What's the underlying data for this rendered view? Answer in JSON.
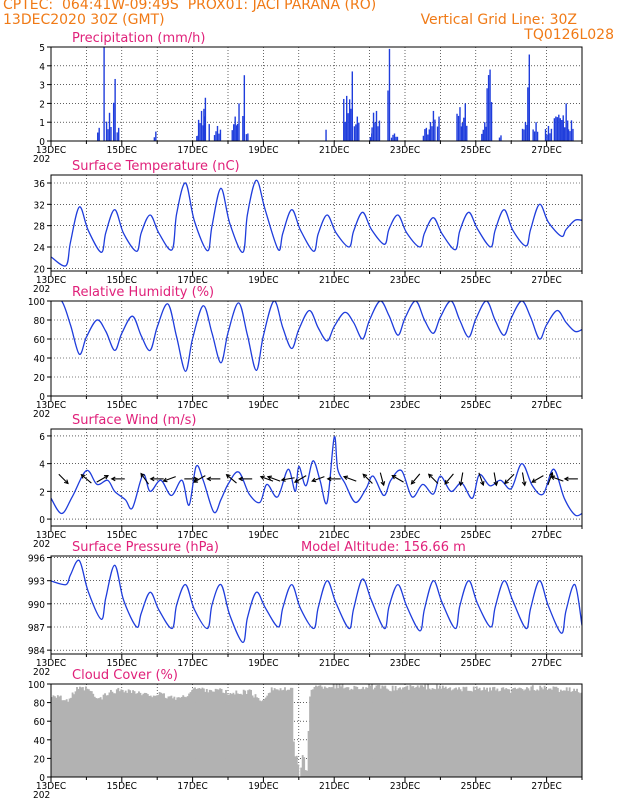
{
  "header": {
    "line1_left": "CPTEC:  064:41W-09:49S  PROX01: JACI PARANA (RO)",
    "line2_left": "13DEC2020 30Z (GMT)",
    "line2_right": "Vertical Grid Line: 30Z",
    "line3_right": "TQ0126L028"
  },
  "colors": {
    "header": "#f07a16",
    "panel_title": "#e0217a",
    "series": "#1f3ddc",
    "cloud": "#b2b2b2"
  },
  "x_axis": {
    "labels": [
      "13DEC",
      "15DEC",
      "17DEC",
      "19DEC",
      "21DEC",
      "23DEC",
      "25DEC",
      "27DEC"
    ],
    "label_days": [
      0,
      2,
      4,
      6,
      8,
      10,
      12,
      14
    ],
    "underlabel": "202",
    "range_days": [
      0,
      15
    ]
  },
  "chart_data": [
    {
      "type": "bar",
      "title": "Precipitation (mm/h)",
      "ylim": [
        0,
        5
      ],
      "yticks": [
        "0",
        "1",
        "2",
        "3",
        "4",
        "5"
      ],
      "grid": true,
      "events": [
        [
          1.3,
          1.4,
          0.7
        ],
        [
          1.48,
          1.52,
          5
        ],
        [
          1.55,
          1.72,
          1.5
        ],
        [
          1.75,
          1.82,
          3.3
        ],
        [
          1.85,
          1.95,
          0.7
        ],
        [
          2.9,
          3.0,
          0.5
        ],
        [
          4.1,
          4.2,
          0.3
        ],
        [
          4.15,
          4.35,
          1.6
        ],
        [
          4.3,
          4.4,
          2.3
        ],
        [
          4.45,
          4.5,
          0.9
        ],
        [
          4.6,
          4.8,
          0.8
        ],
        [
          5.1,
          5.25,
          1.3
        ],
        [
          5.25,
          5.35,
          2.0
        ],
        [
          5.4,
          5.5,
          3.5
        ],
        [
          5.5,
          5.6,
          0.4
        ],
        [
          7.75,
          7.8,
          0.6
        ],
        [
          8.25,
          8.45,
          2.4
        ],
        [
          8.45,
          8.55,
          3.7
        ],
        [
          8.55,
          8.7,
          1.3
        ],
        [
          9.0,
          9.1,
          0.4
        ],
        [
          9.05,
          9.3,
          1.6
        ],
        [
          9.5,
          9.6,
          4.9
        ],
        [
          9.6,
          9.8,
          0.4
        ],
        [
          10.5,
          10.7,
          0.7
        ],
        [
          10.7,
          10.85,
          1.6
        ],
        [
          10.9,
          11.0,
          1.3
        ],
        [
          11.45,
          11.6,
          1.8
        ],
        [
          11.6,
          11.75,
          2.0
        ],
        [
          12.15,
          12.3,
          1.0
        ],
        [
          12.3,
          12.45,
          3.8
        ],
        [
          12.65,
          12.75,
          0.3
        ],
        [
          13.3,
          13.45,
          1.0
        ],
        [
          13.45,
          13.55,
          4.6
        ],
        [
          13.6,
          13.75,
          1.0
        ],
        [
          13.95,
          14.15,
          0.8
        ],
        [
          14.2,
          14.5,
          1.4
        ],
        [
          14.45,
          14.6,
          2.0
        ],
        [
          14.6,
          14.75,
          1.1
        ]
      ]
    },
    {
      "type": "line",
      "title": "Surface Temperature (nC)",
      "ylim": [
        19.5,
        37.5
      ],
      "yticks": [
        20,
        24,
        28,
        32,
        36
      ],
      "grid": true,
      "daily_min": [
        20.5,
        23.0,
        23.2,
        23.5,
        23.3,
        23.0,
        23.5,
        23.2,
        24.0,
        24.5,
        24.0,
        23.5,
        24.0,
        24.2,
        26.0,
        26.5
      ],
      "daily_max": [
        31.5,
        31.0,
        30.0,
        36.0,
        35.0,
        36.5,
        31.0,
        30.0,
        30.5,
        30.0,
        29.5,
        30.5,
        31.0,
        32.0,
        29.0
      ],
      "end_value": 29.0
    },
    {
      "type": "line",
      "title": "Relative Humidity (%)",
      "ylim": [
        0,
        100
      ],
      "yticks": [
        0,
        20,
        40,
        60,
        80,
        100
      ],
      "grid": true,
      "daily_max": [
        100,
        80,
        84,
        97,
        95,
        98,
        100,
        90,
        88,
        100,
        100,
        100,
        100,
        100,
        90,
        72
      ],
      "daily_min": [
        44,
        48,
        48,
        26,
        35,
        27,
        50,
        58,
        60,
        64,
        66,
        62,
        64,
        60,
        68
      ]
    },
    {
      "type": "line",
      "title": "Surface Wind (m/s)",
      "ylim": [
        -0.5,
        6.5
      ],
      "yticks": [
        0,
        2,
        4,
        6
      ],
      "grid": true,
      "x": [
        0,
        0.3,
        0.6,
        1.0,
        1.3,
        1.6,
        1.8,
        2.1,
        2.3,
        2.6,
        2.8,
        3.1,
        3.4,
        3.7,
        3.9,
        4.1,
        4.3,
        4.6,
        4.8,
        5.0,
        5.3,
        5.6,
        5.9,
        6.1,
        6.4,
        6.7,
        6.9,
        7.0,
        7.2,
        7.4,
        7.6,
        7.8,
        8.0,
        8.1,
        8.3,
        8.6,
        8.9,
        9.1,
        9.4,
        9.6,
        9.9,
        10.2,
        10.5,
        10.8,
        11.0,
        11.3,
        11.6,
        11.9,
        12.1,
        12.4,
        12.7,
        13.0,
        13.3,
        13.6,
        13.9,
        14.2,
        14.5,
        14.8,
        15.0
      ],
      "y": [
        1.5,
        0.4,
        1.6,
        3.5,
        2.5,
        2.8,
        2.0,
        1.4,
        0.8,
        3.2,
        2.0,
        2.8,
        1.7,
        2.8,
        1.0,
        3.8,
        2.8,
        0.5,
        1.4,
        2.5,
        3.4,
        1.8,
        1.2,
        2.5,
        1.6,
        3.6,
        2.0,
        3.8,
        2.4,
        4.2,
        2.8,
        1.2,
        5.9,
        3.6,
        2.6,
        1.2,
        2.2,
        3.1,
        1.7,
        2.8,
        3.5,
        1.6,
        2.5,
        1.8,
        3.1,
        2.0,
        2.6,
        1.5,
        3.2,
        2.4,
        2.8,
        2.2,
        4.0,
        2.4,
        1.8,
        3.6,
        1.5,
        0.3,
        0.4
      ],
      "arrows": [
        [
          0.35,
          45
        ],
        [
          1.0,
          220
        ],
        [
          1.45,
          330
        ],
        [
          1.9,
          180
        ],
        [
          2.65,
          235
        ],
        [
          3.0,
          180
        ],
        [
          3.35,
          160
        ],
        [
          3.95,
          0
        ],
        [
          4.2,
          150
        ],
        [
          4.6,
          180
        ],
        [
          5.1,
          220
        ],
        [
          5.5,
          180
        ],
        [
          6.1,
          200
        ],
        [
          6.3,
          200
        ],
        [
          6.7,
          170
        ],
        [
          7.05,
          150
        ],
        [
          7.55,
          160
        ],
        [
          8.0,
          180
        ],
        [
          8.45,
          200
        ],
        [
          8.95,
          225
        ],
        [
          9.35,
          75
        ],
        [
          9.8,
          210
        ],
        [
          10.3,
          130
        ],
        [
          10.8,
          225
        ],
        [
          11.25,
          130
        ],
        [
          11.6,
          100
        ],
        [
          12.15,
          70
        ],
        [
          12.55,
          80
        ],
        [
          12.95,
          135
        ],
        [
          13.35,
          80
        ],
        [
          13.75,
          150
        ],
        [
          14.1,
          290
        ],
        [
          14.3,
          200
        ],
        [
          14.7,
          180
        ]
      ]
    },
    {
      "type": "line",
      "title": "Surface Pressure (hPa)",
      "subtitle": "Model Altitude: 156.66  m",
      "ylim": [
        983.5,
        996.2
      ],
      "yticks": [
        984,
        987,
        990,
        993,
        996
      ],
      "grid": true,
      "daily_max": [
        995.6,
        995.0,
        991.5,
        992.5,
        992.5,
        991.5,
        992.5,
        993.0,
        993.2,
        992.5,
        993.0,
        993.0,
        993.0,
        993.0,
        992.5
      ],
      "daily_min": [
        992.5,
        988.0,
        987.0,
        986.8,
        986.8,
        985.0,
        987.0,
        986.8,
        986.8,
        986.8,
        986.5,
        986.8,
        987.0,
        986.8,
        986.2
      ],
      "end_value": 987.2
    },
    {
      "type": "bar",
      "title": "Cloud Cover (%)",
      "ylim": [
        0,
        100
      ],
      "yticks": [
        0,
        20,
        40,
        60,
        80,
        100
      ],
      "grid": true,
      "bar_color": "#b2b2b2",
      "start_value": 88,
      "keypoints": [
        [
          0.2,
          88
        ],
        [
          0.4,
          80
        ],
        [
          0.7,
          94
        ],
        [
          1.0,
          95
        ],
        [
          1.3,
          83
        ],
        [
          1.7,
          92
        ],
        [
          2.0,
          94
        ],
        [
          2.3,
          92
        ],
        [
          2.6,
          88
        ],
        [
          3.0,
          89
        ],
        [
          3.3,
          86
        ],
        [
          3.7,
          85
        ],
        [
          4.0,
          95
        ],
        [
          4.4,
          94
        ],
        [
          4.8,
          93
        ],
        [
          5.0,
          89
        ],
        [
          5.3,
          91
        ],
        [
          5.6,
          92
        ],
        [
          5.9,
          81
        ],
        [
          6.2,
          95
        ],
        [
          6.5,
          94
        ],
        [
          6.8,
          93
        ],
        [
          6.85,
          15
        ],
        [
          6.9,
          30
        ],
        [
          7.0,
          0
        ],
        [
          7.1,
          25
        ],
        [
          7.2,
          0
        ],
        [
          7.3,
          96
        ],
        [
          7.6,
          97
        ],
        [
          8.0,
          98
        ],
        [
          8.5,
          96
        ],
        [
          9.0,
          97
        ],
        [
          9.5,
          95
        ],
        [
          10.0,
          96
        ],
        [
          10.5,
          97
        ],
        [
          11.0,
          96
        ],
        [
          11.5,
          94
        ],
        [
          12.0,
          95
        ],
        [
          12.5,
          94
        ],
        [
          13.0,
          93
        ],
        [
          13.5,
          96
        ],
        [
          14.0,
          95
        ],
        [
          14.5,
          94
        ],
        [
          15.0,
          92
        ]
      ]
    }
  ]
}
